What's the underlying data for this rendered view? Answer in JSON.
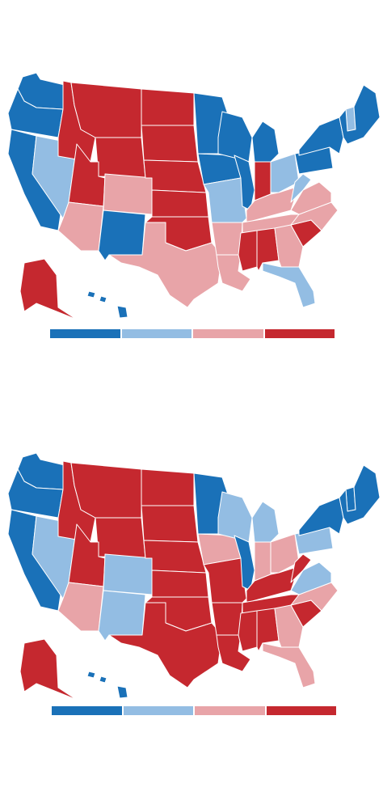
{
  "colors": {
    "dark_blue": "#1a71b8",
    "light_blue": "#93bde3",
    "light_red": "#e8a4a8",
    "dark_red": "#c5282f"
  },
  "maps": [
    {
      "id": "map-top",
      "legend": [
        "dark_blue",
        "light_blue",
        "light_red",
        "dark_red"
      ],
      "states": {
        "WA": "dark_blue",
        "OR": "dark_blue",
        "CA": "dark_blue",
        "NV": "light_blue",
        "ID": "dark_red",
        "MT": "dark_red",
        "WY": "dark_red",
        "UT": "dark_red",
        "AZ": "light_red",
        "CO": "light_red",
        "NM": "dark_blue",
        "ND": "dark_red",
        "SD": "dark_red",
        "NE": "dark_red",
        "KS": "dark_red",
        "OK": "dark_red",
        "TX": "light_red",
        "MN": "dark_blue",
        "IA": "dark_blue",
        "MO": "light_blue",
        "AR": "light_red",
        "LA": "light_red",
        "WI": "dark_blue",
        "IL": "dark_blue",
        "MI": "dark_blue",
        "IN": "dark_red",
        "OH": "light_blue",
        "KY": "light_red",
        "TN": "light_red",
        "MS": "dark_red",
        "AL": "dark_red",
        "GA": "light_red",
        "FL": "light_blue",
        "SC": "dark_red",
        "NC": "light_red",
        "VA": "light_red",
        "WV": "light_blue",
        "PA": "dark_blue",
        "NY": "dark_blue",
        "NE_REGION": "dark_blue",
        "VT": "light_blue",
        "AK": "dark_red",
        "HI": "dark_blue"
      }
    },
    {
      "id": "map-bottom",
      "legend": [
        "dark_blue",
        "light_blue",
        "light_red",
        "dark_red"
      ],
      "states": {
        "WA": "dark_blue",
        "OR": "dark_blue",
        "CA": "dark_blue",
        "NV": "light_blue",
        "ID": "dark_red",
        "MT": "dark_red",
        "WY": "dark_red",
        "UT": "dark_red",
        "AZ": "light_red",
        "CO": "light_blue",
        "NM": "light_blue",
        "ND": "dark_red",
        "SD": "dark_red",
        "NE": "dark_red",
        "KS": "dark_red",
        "OK": "dark_red",
        "TX": "dark_red",
        "MN": "dark_blue",
        "IA": "light_red",
        "MO": "dark_red",
        "AR": "dark_red",
        "LA": "dark_red",
        "WI": "light_blue",
        "IL": "dark_blue",
        "MI": "light_blue",
        "IN": "light_red",
        "OH": "light_red",
        "KY": "dark_red",
        "TN": "dark_red",
        "MS": "dark_red",
        "AL": "dark_red",
        "GA": "light_red",
        "FL": "light_red",
        "SC": "dark_red",
        "NC": "light_red",
        "VA": "light_blue",
        "WV": "dark_red",
        "PA": "light_blue",
        "NY": "dark_blue",
        "NE_REGION": "dark_blue",
        "VT": "dark_blue",
        "AK": "dark_red",
        "HI": "dark_blue"
      }
    }
  ]
}
